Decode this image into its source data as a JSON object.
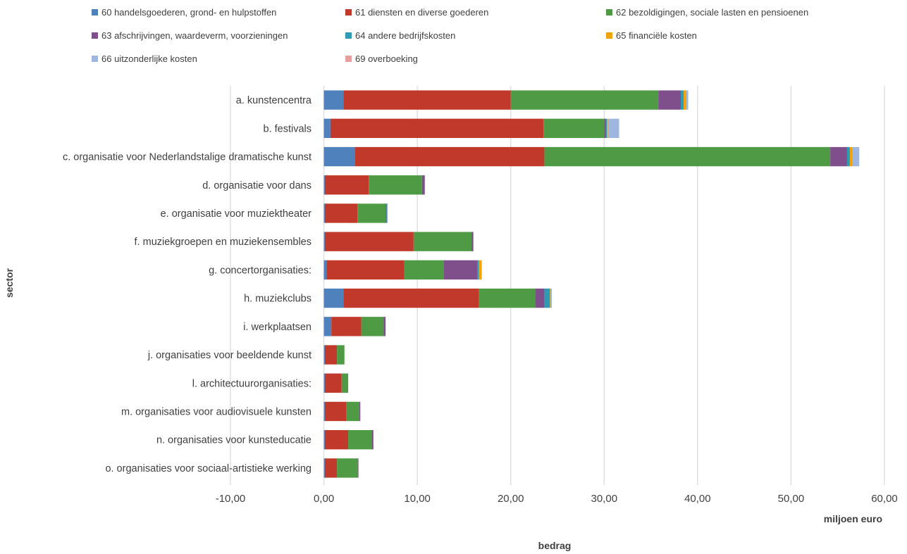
{
  "chart_data": {
    "type": "bar",
    "orientation": "horizontal",
    "stacked": true,
    "title": "",
    "xlabel": "bedrag",
    "ylabel": "sector",
    "unit_label": "miljoen euro",
    "xlim": [
      -10,
      60
    ],
    "x_ticks": [
      "-10,00",
      "0,00",
      "10,00",
      "20,00",
      "30,00",
      "40,00",
      "50,00",
      "60,00"
    ],
    "grid": "vertical",
    "legend_position": "top",
    "categories": [
      "a. kunstencentra",
      "b. festivals",
      "c. organisatie voor Nederlandstalige dramatische kunst",
      "d. organisatie voor dans",
      "e. organisatie voor muziektheater",
      "f. muziekgroepen en muziekensembles",
      "g. concertorganisaties:",
      "h. muziekclubs",
      "i. werkplaatsen",
      "j. organisaties voor beeldende kunst",
      "l. architectuurorganisaties:",
      "m. organisaties voor audiovisuele kunsten",
      "n. organisaties voor kunsteducatie",
      "o. organisaties voor sociaal-artistieke werking"
    ],
    "series": [
      {
        "name": "60 handelsgoederen, grond- en hulpstoffen",
        "color": "#4f81bd",
        "values": [
          2.1,
          0.7,
          3.3,
          0.1,
          0.1,
          0.1,
          0.3,
          2.1,
          0.8,
          0.1,
          0.1,
          0.1,
          0.1,
          0.1
        ]
      },
      {
        "name": "61 diensten en diverse goederen",
        "color": "#c0392b",
        "values": [
          17.9,
          22.8,
          20.3,
          4.7,
          3.5,
          9.5,
          8.3,
          14.5,
          3.2,
          1.3,
          1.8,
          2.3,
          2.5,
          1.3
        ]
      },
      {
        "name": "62 bezoldigingen, sociale lasten en pensioenen",
        "color": "#4e9a45",
        "values": [
          15.8,
          6.5,
          30.6,
          5.7,
          3.0,
          6.2,
          4.2,
          6.0,
          2.4,
          0.8,
          0.7,
          1.4,
          2.5,
          2.2
        ]
      },
      {
        "name": "63 afschrijvingen, waardeverm, voorzieningen",
        "color": "#7f4f8c",
        "values": [
          2.4,
          0.2,
          1.8,
          0.3,
          0.1,
          0.2,
          3.6,
          1.0,
          0.2,
          0.0,
          0.0,
          0.1,
          0.2,
          0.1
        ]
      },
      {
        "name": "64 andere bedrijfskosten",
        "color": "#2e9ab5",
        "values": [
          0.3,
          0.1,
          0.3,
          0.0,
          0.1,
          0.0,
          0.2,
          0.6,
          0.0,
          0.0,
          0.0,
          0.0,
          0.0,
          0.0
        ]
      },
      {
        "name": "65 financiële kosten",
        "color": "#f0a30a",
        "values": [
          0.3,
          0.1,
          0.3,
          0.0,
          0.0,
          0.0,
          0.3,
          0.1,
          0.0,
          0.0,
          0.0,
          0.0,
          0.0,
          0.0
        ]
      },
      {
        "name": "66 uitzonderlijke kosten",
        "color": "#9fb7de",
        "values": [
          0.2,
          1.2,
          0.7,
          0.0,
          0.0,
          0.0,
          0.0,
          0.1,
          0.0,
          0.0,
          0.0,
          0.0,
          0.0,
          0.0
        ]
      },
      {
        "name": "69 overboeking",
        "color": "#e6a0a0",
        "values": [
          0,
          0,
          0,
          0,
          0,
          0,
          0,
          0,
          0,
          0,
          0,
          0,
          0,
          0
        ]
      }
    ]
  }
}
